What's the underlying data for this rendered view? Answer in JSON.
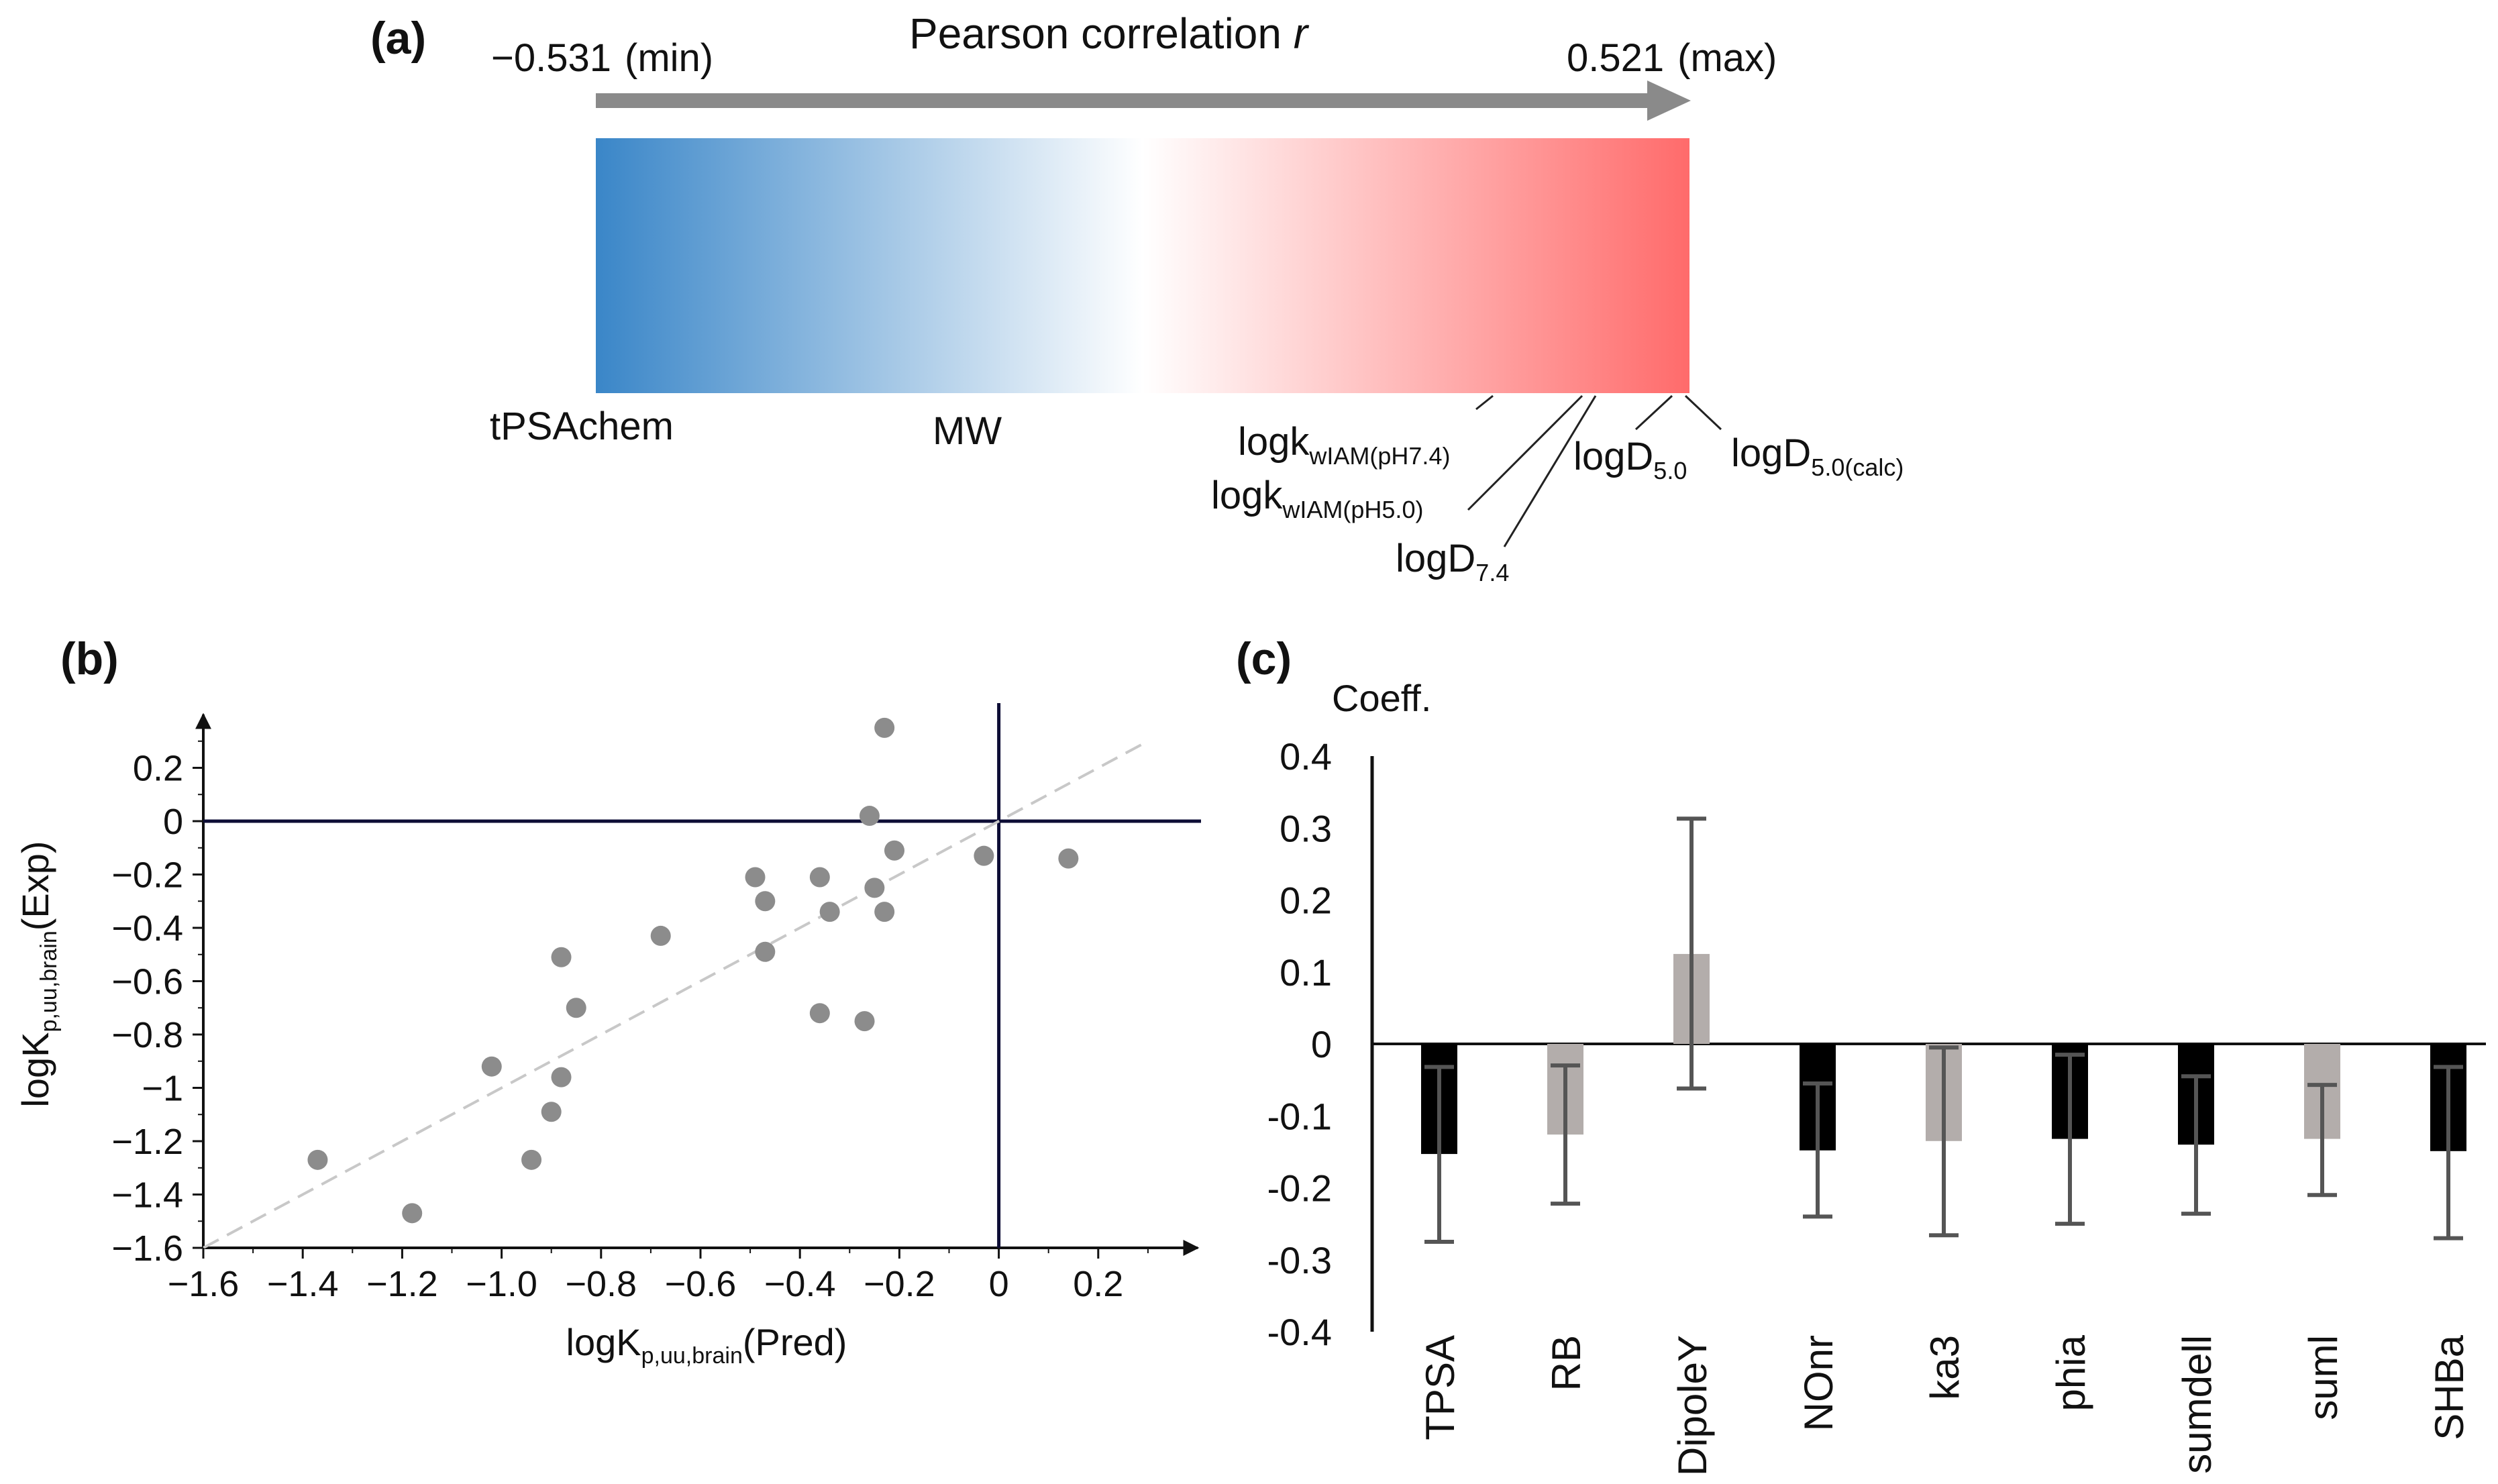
{
  "panel_labels": {
    "a": "(a)",
    "b": "(b)",
    "c": "(c)"
  },
  "panel_a": {
    "title_main": "Pearson correlation ",
    "title_var": "r",
    "min_value": "−0.531",
    "min_tag": "(min)",
    "max_value": "0.521",
    "max_tag": "(max)",
    "bar_low_color": "#3a86c8",
    "bar_mid_color": "#ffffff",
    "bar_high_color": "#ff6b6b",
    "label_left": "tPSAchem",
    "label_mw": "MW",
    "label_logk_base": "logk",
    "label_logk74_sub": "wIAM(pH7.4)",
    "label_logk50_sub": "wIAM(pH5.0)",
    "label_logD_base": "logD",
    "label_logD74_sub": "7.4",
    "label_logD50_sub": "5.0",
    "label_logD50calc_sub": "5.0(calc)"
  },
  "chart_data": [
    {
      "type": "scatter",
      "panel": "b",
      "xlabel_base": "logK",
      "xlabel_sub": "p,uu,brain",
      "xlabel_suffix": "(Pred)",
      "ylabel_base": "logK",
      "ylabel_sub": "p,uu,brain",
      "ylabel_suffix": "(Exp)",
      "xlim": [
        -1.6,
        0.4
      ],
      "ylim": [
        -1.6,
        0.4
      ],
      "xticks": [
        -1.6,
        -1.4,
        -1.2,
        -1.0,
        -0.8,
        -0.6,
        -0.4,
        -0.2,
        0,
        0.2
      ],
      "xtick_labels": [
        "−1.6",
        "−1.4",
        "−1.2",
        "−1.0",
        "−0.8",
        "−0.6",
        "−0.4",
        "−0.2",
        "0",
        "0.2"
      ],
      "yticks": [
        -1.6,
        -1.4,
        -1.2,
        -1.0,
        -0.8,
        -0.6,
        -0.4,
        -0.2,
        0,
        0.2
      ],
      "ytick_labels": [
        "−1.6",
        "−1.4",
        "−1.2",
        "−1",
        "−0.8",
        "−0.6",
        "−0.4",
        "−0.2",
        "0",
        "0.2"
      ],
      "points": [
        {
          "x": -1.37,
          "y": -1.27
        },
        {
          "x": -1.18,
          "y": -1.47
        },
        {
          "x": -1.02,
          "y": -0.92
        },
        {
          "x": -0.94,
          "y": -1.27
        },
        {
          "x": -0.9,
          "y": -1.09
        },
        {
          "x": -0.88,
          "y": -0.96
        },
        {
          "x": -0.88,
          "y": -0.51
        },
        {
          "x": -0.85,
          "y": -0.7
        },
        {
          "x": -0.68,
          "y": -0.43
        },
        {
          "x": -0.49,
          "y": -0.21
        },
        {
          "x": -0.47,
          "y": -0.3
        },
        {
          "x": -0.47,
          "y": -0.49
        },
        {
          "x": -0.36,
          "y": -0.21
        },
        {
          "x": -0.36,
          "y": -0.72
        },
        {
          "x": -0.34,
          "y": -0.34
        },
        {
          "x": -0.27,
          "y": -0.75
        },
        {
          "x": -0.26,
          "y": 0.02
        },
        {
          "x": -0.25,
          "y": -0.25
        },
        {
          "x": -0.23,
          "y": -0.34
        },
        {
          "x": -0.23,
          "y": 0.35
        },
        {
          "x": -0.21,
          "y": -0.11
        },
        {
          "x": -0.03,
          "y": -0.13
        },
        {
          "x": 0.14,
          "y": -0.14
        }
      ],
      "reference_line": "y = x (dashed)"
    },
    {
      "type": "bar",
      "panel": "c",
      "ylabel": "Coeff.",
      "ylim": [
        -0.4,
        0.4
      ],
      "yticks": [
        -0.4,
        -0.3,
        -0.2,
        -0.1,
        0,
        0.1,
        0.2,
        0.3,
        0.4
      ],
      "ytick_labels": [
        "-0.4",
        "-0.3",
        "-0.2",
        "-0.1",
        "0",
        "0.1",
        "0.2",
        "0.3",
        "0.4"
      ],
      "categories": [
        "TPSA",
        "RB",
        "DipoleY",
        "NOnr",
        "ka3",
        "phia",
        "sumdell",
        "suml",
        "SHBa"
      ],
      "values": [
        -0.153,
        -0.126,
        0.125,
        -0.148,
        -0.135,
        -0.132,
        -0.14,
        -0.132,
        -0.149
      ],
      "error_low": [
        -0.275,
        -0.222,
        -0.062,
        -0.24,
        -0.266,
        -0.25,
        -0.236,
        -0.21,
        -0.27
      ],
      "error_high": [
        -0.032,
        -0.03,
        0.313,
        -0.055,
        -0.005,
        -0.015,
        -0.045,
        -0.057,
        -0.032
      ],
      "bar_colors": [
        "#000000",
        "#b3adab",
        "#b3adab",
        "#000000",
        "#b3adab",
        "#000000",
        "#000000",
        "#b3adab",
        "#000000"
      ],
      "error_color": "#555555"
    }
  ]
}
